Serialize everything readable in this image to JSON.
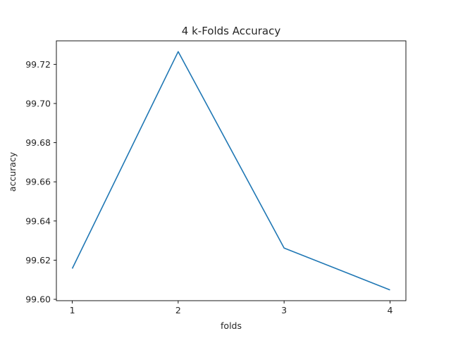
{
  "chart_data": {
    "type": "line",
    "title": "4 k-Folds Accuracy",
    "xlabel": "folds",
    "ylabel": "accuracy",
    "x": [
      1,
      2,
      3,
      4
    ],
    "series": [
      {
        "values": [
          99.6157,
          99.7265,
          99.6262,
          99.6048
        ],
        "color": "#1f77b4"
      }
    ],
    "xticks": [
      "1",
      "2",
      "3",
      "4"
    ],
    "yticks": [
      "99.60",
      "99.62",
      "99.64",
      "99.66",
      "99.68",
      "99.70",
      "99.72"
    ],
    "xlim": [
      0.85,
      4.15
    ],
    "ylim": [
      99.5993,
      99.732
    ],
    "grid": false,
    "legend": false
  }
}
